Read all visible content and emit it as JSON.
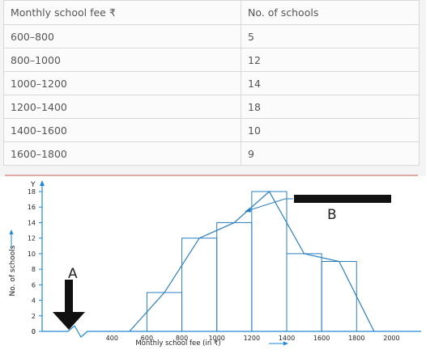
{
  "table": {
    "headers": [
      "Monthly school fee ₹",
      "No. of schools"
    ],
    "rows": [
      [
        "600–800",
        "5"
      ],
      [
        "800–1000",
        "12"
      ],
      [
        "1000–1200",
        "14"
      ],
      [
        "1200–1400",
        "18"
      ],
      [
        "1400–1600",
        "10"
      ],
      [
        "1600–1800",
        "9"
      ]
    ]
  },
  "chart_data": {
    "type": "bar",
    "xlabel": "Monthly school fee (in ₹)",
    "ylabel": "No. of schools",
    "y_axis_letter": "Y",
    "x_ticks": [
      "400",
      "600",
      "800",
      "1000",
      "1200",
      "1400",
      "1600",
      "1800",
      "2000"
    ],
    "y_ticks": [
      "0",
      "2",
      "4",
      "6",
      "8",
      "10",
      "12",
      "14",
      "16",
      "18"
    ],
    "xlim": [
      0,
      2100
    ],
    "ylim": [
      0,
      19
    ],
    "bins": [
      [
        600,
        800
      ],
      [
        800,
        1000
      ],
      [
        1000,
        1200
      ],
      [
        1200,
        1400
      ],
      [
        1400,
        1600
      ],
      [
        1600,
        1800
      ]
    ],
    "values": [
      5,
      12,
      14,
      18,
      10,
      9
    ],
    "frequency_polygon": {
      "x": [
        500,
        700,
        900,
        1100,
        1300,
        1500,
        1700,
        1900
      ],
      "y": [
        0,
        5,
        12,
        14,
        18,
        10,
        9,
        0
      ]
    },
    "annotations": [
      {
        "text": "A",
        "target": "kink (break) on x-axis"
      },
      {
        "text": "B",
        "target": "frequency polygon"
      }
    ],
    "grid": false
  }
}
